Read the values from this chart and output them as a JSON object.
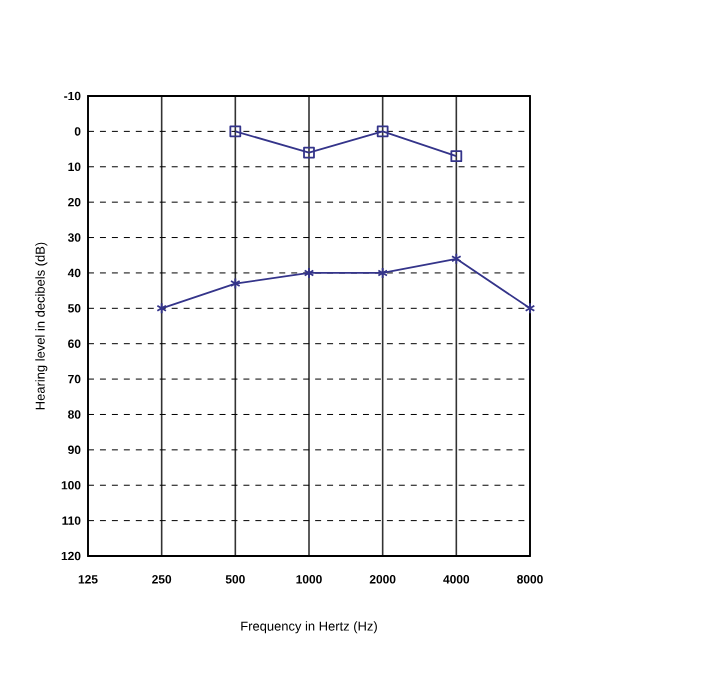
{
  "chart_data": {
    "type": "line",
    "xlabel": "Frequency in Hertz (Hz)",
    "ylabel": "Hearing level in decibels (dB)",
    "categories": [
      "125",
      "250",
      "500",
      "1000",
      "2000",
      "4000",
      "8000"
    ],
    "ylim": [
      120,
      -10
    ],
    "yticks": [
      -10,
      0,
      10,
      20,
      30,
      40,
      50,
      60,
      70,
      80,
      90,
      100,
      110,
      120
    ],
    "grid": true,
    "line_style": "solid",
    "series": [
      {
        "color": "#34348a",
        "marker": "square",
        "values": [
          null,
          null,
          0,
          6,
          0,
          7,
          null
        ]
      },
      {
        "color": "#34348a",
        "marker": "cross",
        "values": [
          null,
          50,
          43,
          40,
          40,
          36,
          50
        ]
      }
    ]
  }
}
